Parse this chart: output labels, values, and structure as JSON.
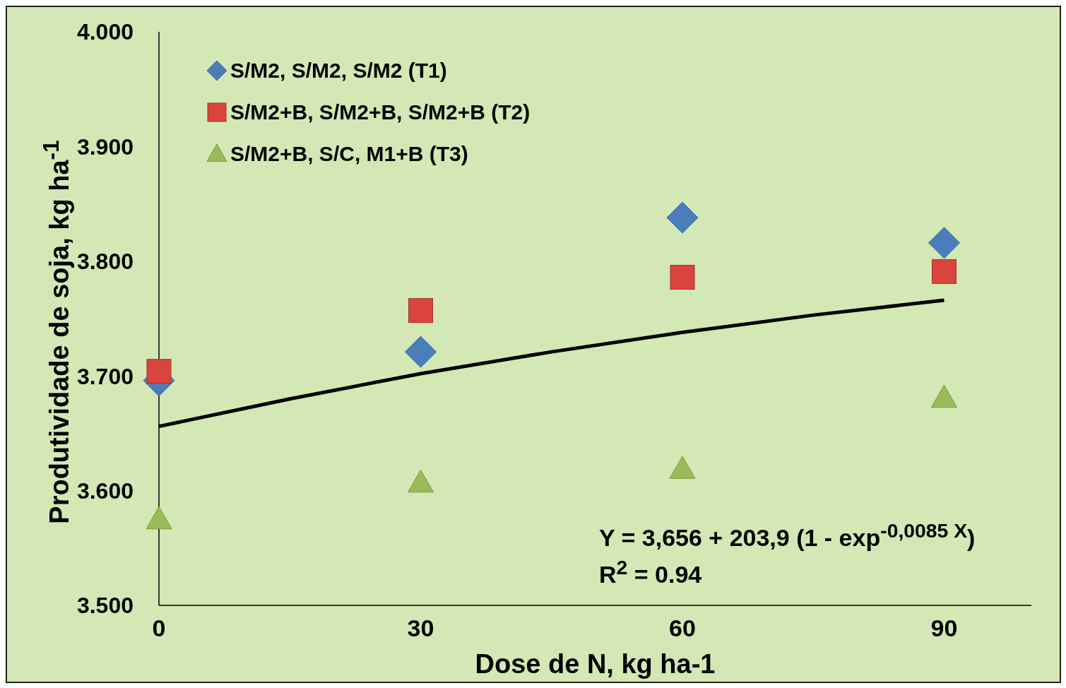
{
  "chart_data": {
    "type": "scatter",
    "xlabel": "Dose de N, kg ha-1",
    "ylabel": "Produtividade de soja, kg ha$^{-1}$",
    "x": [
      0,
      30,
      60,
      90
    ],
    "series": [
      {
        "name": "S/M2, S/M2, S/M2 (T1)",
        "color": "#4a7ebb",
        "marker": "diamond",
        "values": [
          3696,
          3721,
          3838,
          3816
        ]
      },
      {
        "name": "S/M2+B, S/M2+B, S/M2+B (T2)",
        "color": "#d9443f",
        "marker": "square",
        "values": [
          3704,
          3757,
          3786,
          3791
        ]
      },
      {
        "name": "S/M2+B, S/C, M1+B (T3)",
        "color": "#9bbb59",
        "marker": "triangle",
        "values": [
          3575,
          3607,
          3619,
          3681
        ]
      },
      {
        "type": "line",
        "color": "#000000",
        "marker": "none",
        "x": [
          0,
          15,
          30,
          45,
          60,
          75,
          90
        ],
        "values": [
          3656,
          3680,
          3702,
          3721,
          3738,
          3753,
          3766
        ]
      }
    ],
    "xlim": [
      0,
      100
    ],
    "xticks": [
      0,
      30,
      60,
      90
    ],
    "ylim": [
      3500,
      4000
    ],
    "yticks": [
      {
        "value": 3500,
        "label": "3.500"
      },
      {
        "value": 3600,
        "label": "3.600"
      },
      {
        "value": 3700,
        "label": "3.700"
      },
      {
        "value": 3800,
        "label": "3.800"
      },
      {
        "value": 3900,
        "label": "3.900"
      },
      {
        "value": 4000,
        "label": "4.000"
      }
    ],
    "grid": false,
    "legend": "top left",
    "annotations": [
      "Y = 3,656 + 203,9 (1 - exp$^{-0,0085 X}$)",
      "R$^{2}$ = 0.94"
    ]
  }
}
